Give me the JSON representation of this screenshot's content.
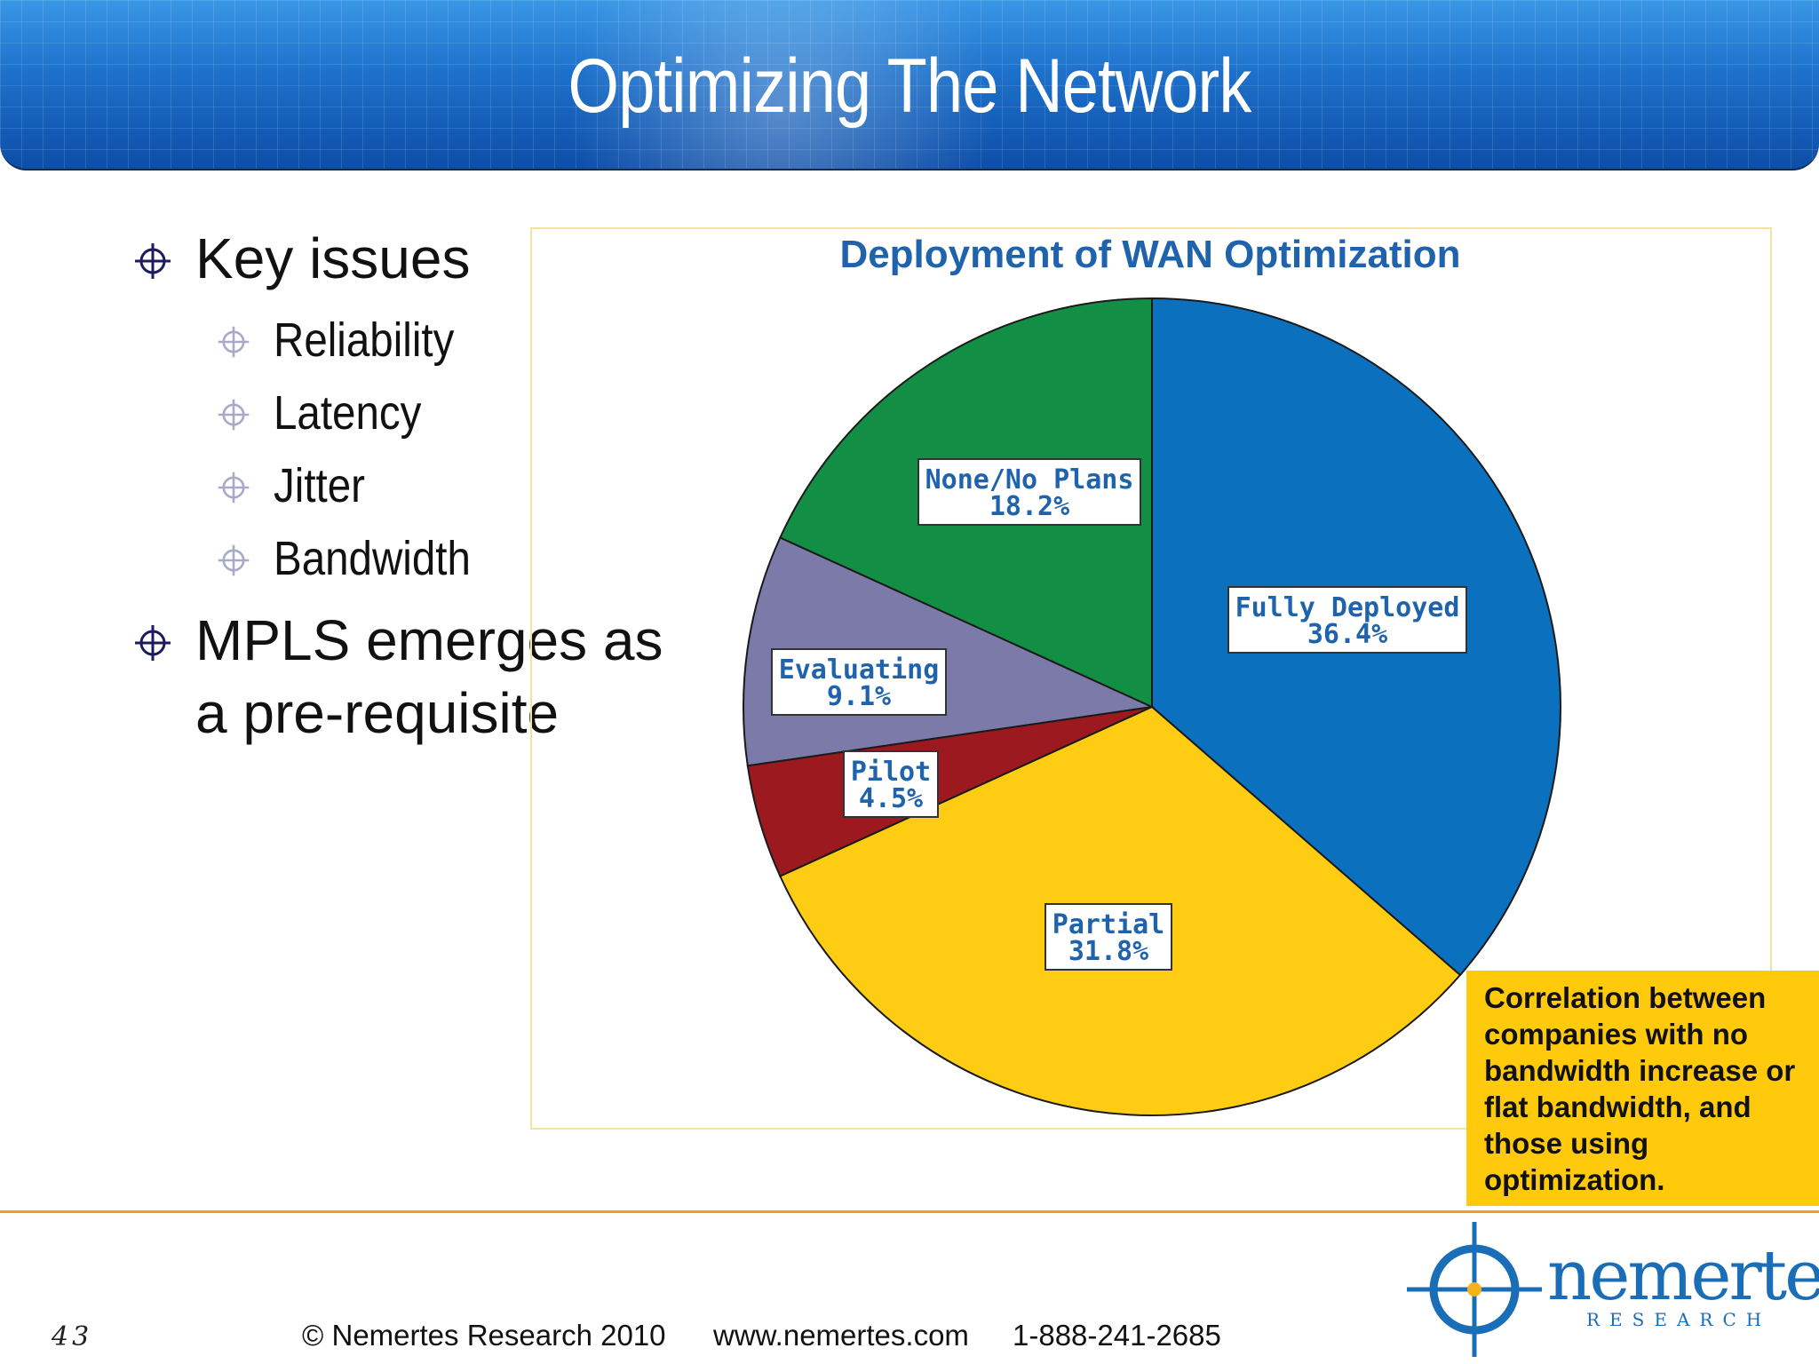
{
  "slide": {
    "title": "Optimizing The Network",
    "bullets": {
      "key_issues": "Key issues",
      "sub_items": [
        "Reliability",
        "Latency",
        "Jitter",
        "Bandwidth"
      ],
      "mpls_line1": "MPLS emerges as",
      "mpls_line2": "a pre-requisite"
    },
    "callout": "Correlation between companies with no bandwidth increase or flat bandwidth, and those using optimization.",
    "page_number": "43",
    "footer": {
      "copyright": "© Nemertes Research 2010",
      "website": "www.nemertes.com",
      "phone": "1-888-241-2685"
    },
    "logo": {
      "word": "nemertes",
      "sub": "RESEARCH"
    }
  },
  "chart_data": {
    "type": "pie",
    "title": "Deployment of WAN Optimization",
    "slices": [
      {
        "label": "Fully Deployed",
        "value": 36.4,
        "value_label": "36.4%",
        "color": "#0b71bf"
      },
      {
        "label": "Partial",
        "value": 31.8,
        "value_label": "31.8%",
        "color": "#ffcc14"
      },
      {
        "label": "Pilot",
        "value": 4.5,
        "value_label": "4.5%",
        "color": "#9c1a1f"
      },
      {
        "label": "Evaluating",
        "value": 9.1,
        "value_label": "9.1%",
        "color": "#7b7aa8"
      },
      {
        "label": "None/No Plans",
        "value": 18.2,
        "value_label": "18.2%",
        "color": "#128f44"
      }
    ],
    "start_angle": "12 o'clock",
    "direction": "clockwise",
    "label_text_color": "#1f63ad"
  }
}
